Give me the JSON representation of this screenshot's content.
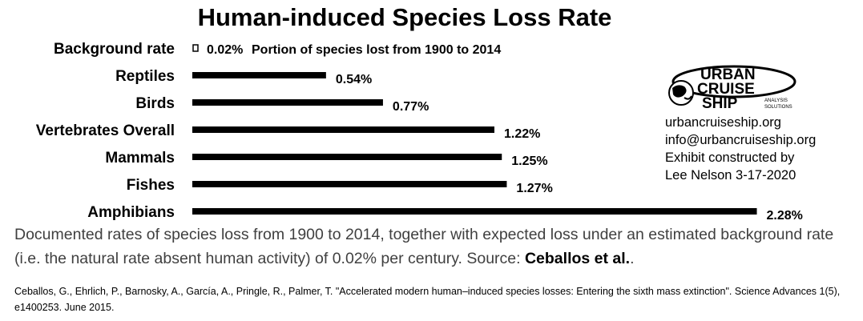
{
  "chart_data": {
    "type": "bar",
    "orientation": "horizontal",
    "title": "Human-induced Species Loss Rate",
    "categories": [
      "Background rate",
      "Reptiles",
      "Birds",
      "Vertebrates Overall",
      "Mammals",
      "Fishes",
      "Amphibians"
    ],
    "values": [
      0.02,
      0.54,
      0.77,
      1.22,
      1.25,
      1.27,
      2.28
    ],
    "value_labels": [
      "0.02%",
      "0.54%",
      "0.77%",
      "1.22%",
      "1.25%",
      "1.27%",
      "2.28%"
    ],
    "annotation": "Portion of species lost from 1900 to 2014",
    "xlim": [
      0,
      2.28
    ],
    "bar_color": "#000000",
    "grid": false
  },
  "caption": {
    "text": "Documented rates of species loss from 1900 to 2014, together with expected loss under an estimated background rate (i.e. the natural rate absent human activity) of 0.02% per century. Source: ",
    "source": "Ceballos et al.",
    "end": "."
  },
  "reference": "Ceballos, G., Ehrlich, P., Barnosky, A., García, A., Pringle, R., Palmer, T. \"Accelerated modern human–induced species losses: Entering the sixth mass extinction\". Science Advances 1(5), e1400253. June 2015.",
  "logo": {
    "line1": "URBAN",
    "line2": "CRUISE",
    "line3": "SHIP",
    "sub1": "ANALYSIS",
    "sub2": "SOLUTIONS"
  },
  "info": [
    "urbancruiseship.org",
    "info@urbancruiseship.org",
    "Exhibit constructed by",
    "Lee Nelson 3-17-2020"
  ]
}
